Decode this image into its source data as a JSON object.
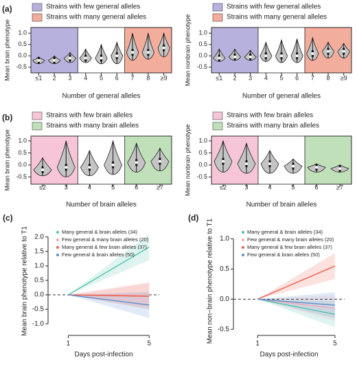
{
  "chart_data": [
    {
      "type": "violin",
      "panel_label": "(a)",
      "ylabel": "Mean brain phenotype",
      "xlabel": "Number of general alleles",
      "categories": [
        "≤1",
        "2",
        "3",
        "4",
        "5",
        "6",
        "7",
        "8",
        "≥9"
      ],
      "median": [
        -0.2,
        -0.2,
        -0.1,
        -0.1,
        -0.1,
        0.0,
        0.15,
        0.15,
        0.35
      ],
      "min": [
        -0.35,
        -0.35,
        -0.3,
        -0.3,
        -0.35,
        -0.35,
        -0.2,
        -0.15,
        -0.05
      ],
      "max": [
        -0.05,
        0.0,
        0.15,
        0.3,
        0.5,
        0.6,
        1.0,
        1.0,
        1.0
      ],
      "violin_color": "#c4c4c4",
      "ylim": [
        -0.75,
        1.25
      ],
      "yticks": [
        {
          "value": -0.5,
          "label": "-0.5"
        },
        {
          "value": 0,
          "label": "0.0"
        },
        {
          "value": 0.5,
          "label": "0.5"
        },
        {
          "value": 1,
          "label": "1.0"
        }
      ],
      "regions": [
        {
          "name": "Strains with few general alleles",
          "color": "#b7b2dd",
          "categories": [
            "≤1",
            "2",
            "3"
          ]
        },
        {
          "name": "Strains with many general alleles",
          "color": "#f3ad9c",
          "categories": [
            "7",
            "8",
            "≥9"
          ]
        }
      ]
    },
    {
      "type": "violin",
      "ylabel": "Mean nonbrain phenotype",
      "xlabel": "Number of general alleles",
      "categories": [
        "≤1",
        "2",
        "3",
        "4",
        "5",
        "6",
        "7",
        "8",
        "≥9"
      ],
      "median": [
        -0.1,
        -0.05,
        -0.05,
        0.0,
        0.0,
        0.0,
        0.1,
        0.2,
        0.2
      ],
      "min": [
        -0.25,
        -0.2,
        -0.2,
        -0.25,
        -0.3,
        -0.3,
        -0.2,
        -0.1,
        -0.1
      ],
      "max": [
        0.3,
        0.3,
        0.25,
        0.6,
        0.7,
        0.75,
        0.8,
        0.6,
        0.55
      ],
      "violin_color": "#c4c4c4",
      "ylim": [
        -0.75,
        1.25
      ],
      "yticks": [
        {
          "value": -0.5,
          "label": "-0.5"
        },
        {
          "value": 0,
          "label": "0.0"
        },
        {
          "value": 0.5,
          "label": "0.5"
        },
        {
          "value": 1,
          "label": "1.0"
        }
      ],
      "regions": [
        {
          "name": "Strains with few general alleles",
          "color": "#b7b2dd",
          "categories": [
            "≤1",
            "2",
            "3"
          ]
        },
        {
          "name": "Strains with many general alleles",
          "color": "#f3ad9c",
          "categories": [
            "7",
            "8",
            "≥9"
          ]
        }
      ]
    },
    {
      "type": "violin",
      "panel_label": "(b)",
      "ylabel": "Mean brain phenotype",
      "xlabel": "Number of brain alleles",
      "categories": [
        "≤2",
        "3",
        "4",
        "5",
        "6",
        "≥7"
      ],
      "median": [
        -0.2,
        -0.1,
        -0.1,
        0.0,
        0.1,
        0.15
      ],
      "min": [
        -0.45,
        -0.5,
        -0.45,
        -0.4,
        -0.3,
        -0.25
      ],
      "max": [
        0.3,
        1.0,
        0.6,
        1.0,
        0.9,
        0.7
      ],
      "violin_color": "#c4c4c4",
      "ylim": [
        -0.8,
        1.2
      ],
      "yticks": [
        {
          "value": -0.5,
          "label": "-0.5"
        },
        {
          "value": 0,
          "label": "0.0"
        },
        {
          "value": 0.5,
          "label": "0.5"
        },
        {
          "value": 1,
          "label": "1.0"
        }
      ],
      "regions": [
        {
          "name": "Strains with few brain alleles",
          "color": "#f6c6d8",
          "categories": [
            "≤2",
            "3"
          ]
        },
        {
          "name": "Strains with many brain alleles",
          "color": "#bfe0b8",
          "categories": [
            "6",
            "≥7"
          ]
        }
      ]
    },
    {
      "type": "violin",
      "ylabel": "Mean nonbrain phenotype",
      "xlabel": "Number of brain alleles",
      "categories": [
        "≤2",
        "3",
        "4",
        "5",
        "6",
        "≥7"
      ],
      "median": [
        0.15,
        0.05,
        0.05,
        -0.05,
        -0.1,
        -0.15
      ],
      "min": [
        -0.3,
        -0.35,
        -0.35,
        -0.35,
        -0.3,
        -0.3
      ],
      "max": [
        1.0,
        0.9,
        0.6,
        0.25,
        0.05,
        0.0
      ],
      "violin_color": "#c4c4c4",
      "ylim": [
        -0.8,
        1.2
      ],
      "yticks": [
        {
          "value": -0.5,
          "label": "-0.5"
        },
        {
          "value": 0,
          "label": "0.0"
        },
        {
          "value": 0.5,
          "label": "0.5"
        },
        {
          "value": 1,
          "label": "1.0"
        }
      ],
      "regions": [
        {
          "name": "Strains with few brain alleles",
          "color": "#f6c6d8",
          "categories": [
            "≤2",
            "3"
          ]
        },
        {
          "name": "Strains with many brain alleles",
          "color": "#bfe0b8",
          "categories": [
            "6",
            "≥7"
          ]
        }
      ]
    },
    {
      "type": "line",
      "panel_label": "(c)",
      "ylabel": "Mean brain phenotype relative to T1",
      "xlabel": "Days post-infection",
      "x": [
        1,
        5
      ],
      "xlim": [
        0,
        5.5
      ],
      "xticks": [
        1,
        5
      ],
      "ylim": [
        -1.4,
        2.35
      ],
      "yticks": [
        {
          "value": -1,
          "label": "-1.0"
        },
        {
          "value": -0.5,
          "label": "-0.5"
        },
        {
          "value": 0,
          "label": "0.0"
        },
        {
          "value": 0.5,
          "label": "0.5"
        },
        {
          "value": 1,
          "label": "1.0"
        },
        {
          "value": 1.5,
          "label": "1.5"
        },
        {
          "value": 2,
          "label": "2.0"
        }
      ],
      "reference_line": 0,
      "series": [
        {
          "name": "Many general & brain alleles (34)",
          "color": "#4fc4aa",
          "values": [
            0,
            1.65
          ]
        },
        {
          "name": "Few general & many brain alleles (20)",
          "color": "#f2a8b4",
          "values": [
            0,
            0.0
          ]
        },
        {
          "name": "Many general & few brain alleles (37)",
          "color": "#e8604c",
          "values": [
            0,
            -0.05
          ]
        },
        {
          "name": "Few general & brain alleles (50)",
          "color": "#5b8fd0",
          "values": [
            0,
            -0.35
          ]
        }
      ]
    },
    {
      "type": "line",
      "panel_label": "(d)",
      "ylabel": "Mean non−brain phenotype relative to T1",
      "xlabel": "Days post-infection",
      "x": [
        1,
        5
      ],
      "xlim": [
        -0.25,
        5.5
      ],
      "xticks": [
        1,
        5
      ],
      "ylim": [
        -0.6,
        1.2
      ],
      "yticks": [
        {
          "value": -0.5,
          "label": "-0.5"
        },
        {
          "value": 0,
          "label": "0.0"
        },
        {
          "value": 0.5,
          "label": "0.5"
        },
        {
          "value": 1,
          "label": "1.0"
        }
      ],
      "reference_line": 0,
      "series": [
        {
          "name": "Many general & brain alleles (34)",
          "color": "#4fc4aa",
          "values": [
            0,
            -0.25
          ]
        },
        {
          "name": "Few general & many brain alleles (20)",
          "color": "#f2a8b4",
          "values": [
            0,
            -0.15
          ]
        },
        {
          "name": "Many general & few brain alleles (37)",
          "color": "#e8604c",
          "values": [
            0,
            0.55
          ]
        },
        {
          "name": "Few general & brain alleles (50)",
          "color": "#5b8fd0",
          "values": [
            0,
            -0.1
          ]
        }
      ]
    }
  ]
}
